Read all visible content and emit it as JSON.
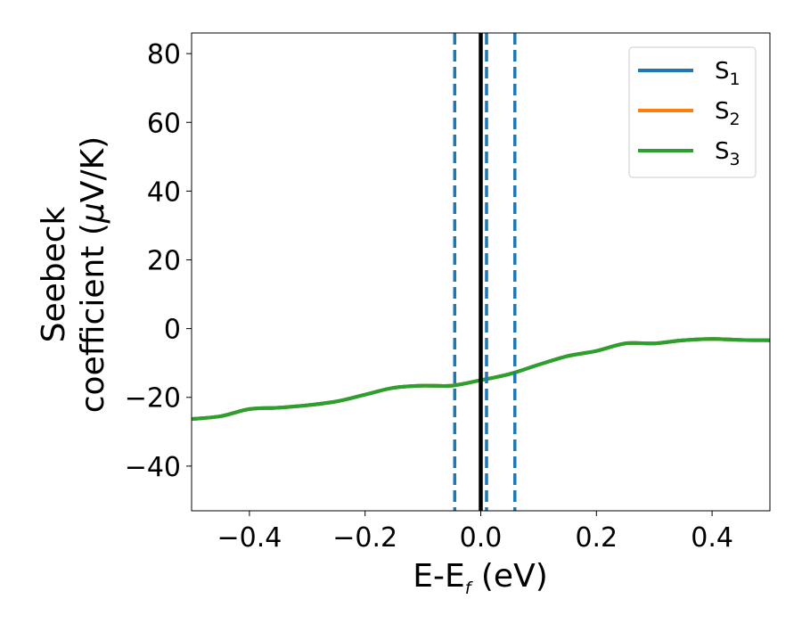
{
  "chart_data": {
    "type": "line",
    "title": "",
    "xlabel_main": "E-E",
    "xlabel_sub": "f",
    "xlabel_unit": "(eV)",
    "ylabel_line1": "Seebeck",
    "ylabel_line2_pre": "coefficient  (",
    "ylabel_mu": "μ",
    "ylabel_line2_post": "V/K)",
    "xlim": [
      -0.5,
      0.5
    ],
    "ylim": [
      -53,
      86
    ],
    "xticks": [
      -0.4,
      -0.2,
      0.0,
      0.2,
      0.4
    ],
    "xtick_labels": [
      "−0.4",
      "−0.2",
      "0.0",
      "0.2",
      "0.4"
    ],
    "yticks": [
      -40,
      -20,
      0,
      20,
      40,
      60,
      80
    ],
    "ytick_labels": [
      "−40",
      "−20",
      "0",
      "20",
      "40",
      "60",
      "80"
    ],
    "grid": false,
    "legend_position": "top-right",
    "series": [
      {
        "name": "S",
        "sub": "1",
        "color": "#1f77b4",
        "x": [
          -0.5,
          -0.45,
          -0.4,
          -0.35,
          -0.3,
          -0.25,
          -0.2,
          -0.15,
          -0.1,
          -0.05,
          0.0,
          0.05,
          0.1,
          0.15,
          0.2,
          0.25,
          0.3,
          0.35,
          0.4,
          0.45,
          0.5
        ],
        "y": [
          -26.3,
          -25.5,
          -23.4,
          -23.0,
          -22.3,
          -21.2,
          -19.2,
          -17.2,
          -16.6,
          -16.6,
          -15.0,
          -13.2,
          -10.5,
          -8.0,
          -6.5,
          -4.3,
          -4.3,
          -3.4,
          -3.0,
          -3.3,
          -3.4
        ]
      },
      {
        "name": "S",
        "sub": "2",
        "color": "#ff7f0e",
        "x": [
          -0.5,
          -0.45,
          -0.4,
          -0.35,
          -0.3,
          -0.25,
          -0.2,
          -0.15,
          -0.1,
          -0.05,
          0.0,
          0.05,
          0.1,
          0.15,
          0.2,
          0.25,
          0.3,
          0.35,
          0.4,
          0.45,
          0.5
        ],
        "y": [
          -26.3,
          -25.5,
          -23.4,
          -23.0,
          -22.3,
          -21.2,
          -19.2,
          -17.2,
          -16.6,
          -16.6,
          -15.0,
          -13.2,
          -10.5,
          -8.0,
          -6.5,
          -4.3,
          -4.3,
          -3.4,
          -3.0,
          -3.3,
          -3.4
        ]
      },
      {
        "name": "S",
        "sub": "3",
        "color": "#2ca02c",
        "x": [
          -0.5,
          -0.45,
          -0.4,
          -0.35,
          -0.3,
          -0.25,
          -0.2,
          -0.15,
          -0.1,
          -0.05,
          0.0,
          0.05,
          0.1,
          0.15,
          0.2,
          0.25,
          0.3,
          0.35,
          0.4,
          0.45,
          0.5
        ],
        "y": [
          -26.3,
          -25.5,
          -23.4,
          -23.0,
          -22.3,
          -21.2,
          -19.2,
          -17.2,
          -16.6,
          -16.6,
          -15.0,
          -13.2,
          -10.5,
          -8.0,
          -6.5,
          -4.3,
          -4.3,
          -3.4,
          -3.0,
          -3.3,
          -3.4
        ]
      }
    ],
    "vertical_lines": [
      {
        "x": 0.0,
        "style": "solid",
        "color": "#000000"
      },
      {
        "x": -0.045,
        "style": "dashed",
        "color": "#1f77b4"
      },
      {
        "x": 0.01,
        "style": "dashed",
        "color": "#1f77b4"
      },
      {
        "x": 0.059,
        "style": "dashed",
        "color": "#1f77b4"
      }
    ]
  }
}
